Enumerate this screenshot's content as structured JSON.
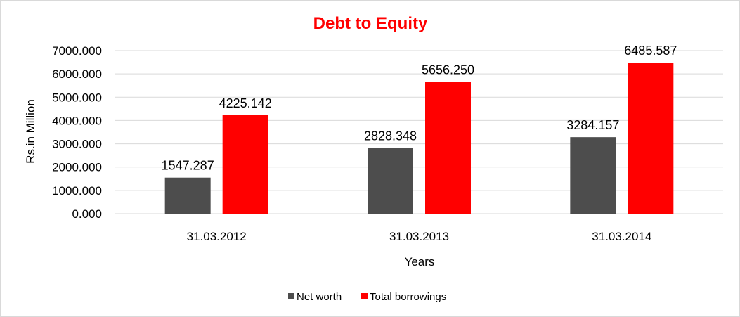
{
  "chart_data": {
    "type": "bar",
    "title": "Debt to Equity",
    "xlabel": "Years",
    "ylabel": "Rs.in Million",
    "categories": [
      "31.03.2012",
      "31.03.2013",
      "31.03.2014"
    ],
    "series": [
      {
        "name": "Net worth",
        "values": [
          1547.287,
          2828.348,
          3284.157
        ],
        "labels": [
          "1547.287",
          "2828.348",
          "3284.157"
        ],
        "color": "#4d4d4d"
      },
      {
        "name": "Total borrowings",
        "values": [
          4225.142,
          5656.25,
          6485.587
        ],
        "labels": [
          "4225.142",
          "5656.250",
          "6485.587"
        ],
        "color": "#ff0000"
      }
    ],
    "ylim": [
      0,
      7000
    ],
    "yticks": [
      "0.000",
      "1000.000",
      "2000.000",
      "3000.000",
      "4000.000",
      "5000.000",
      "6000.000",
      "7000.000"
    ],
    "grid": true,
    "legend": "bottom",
    "title_color": "#ff0000"
  }
}
